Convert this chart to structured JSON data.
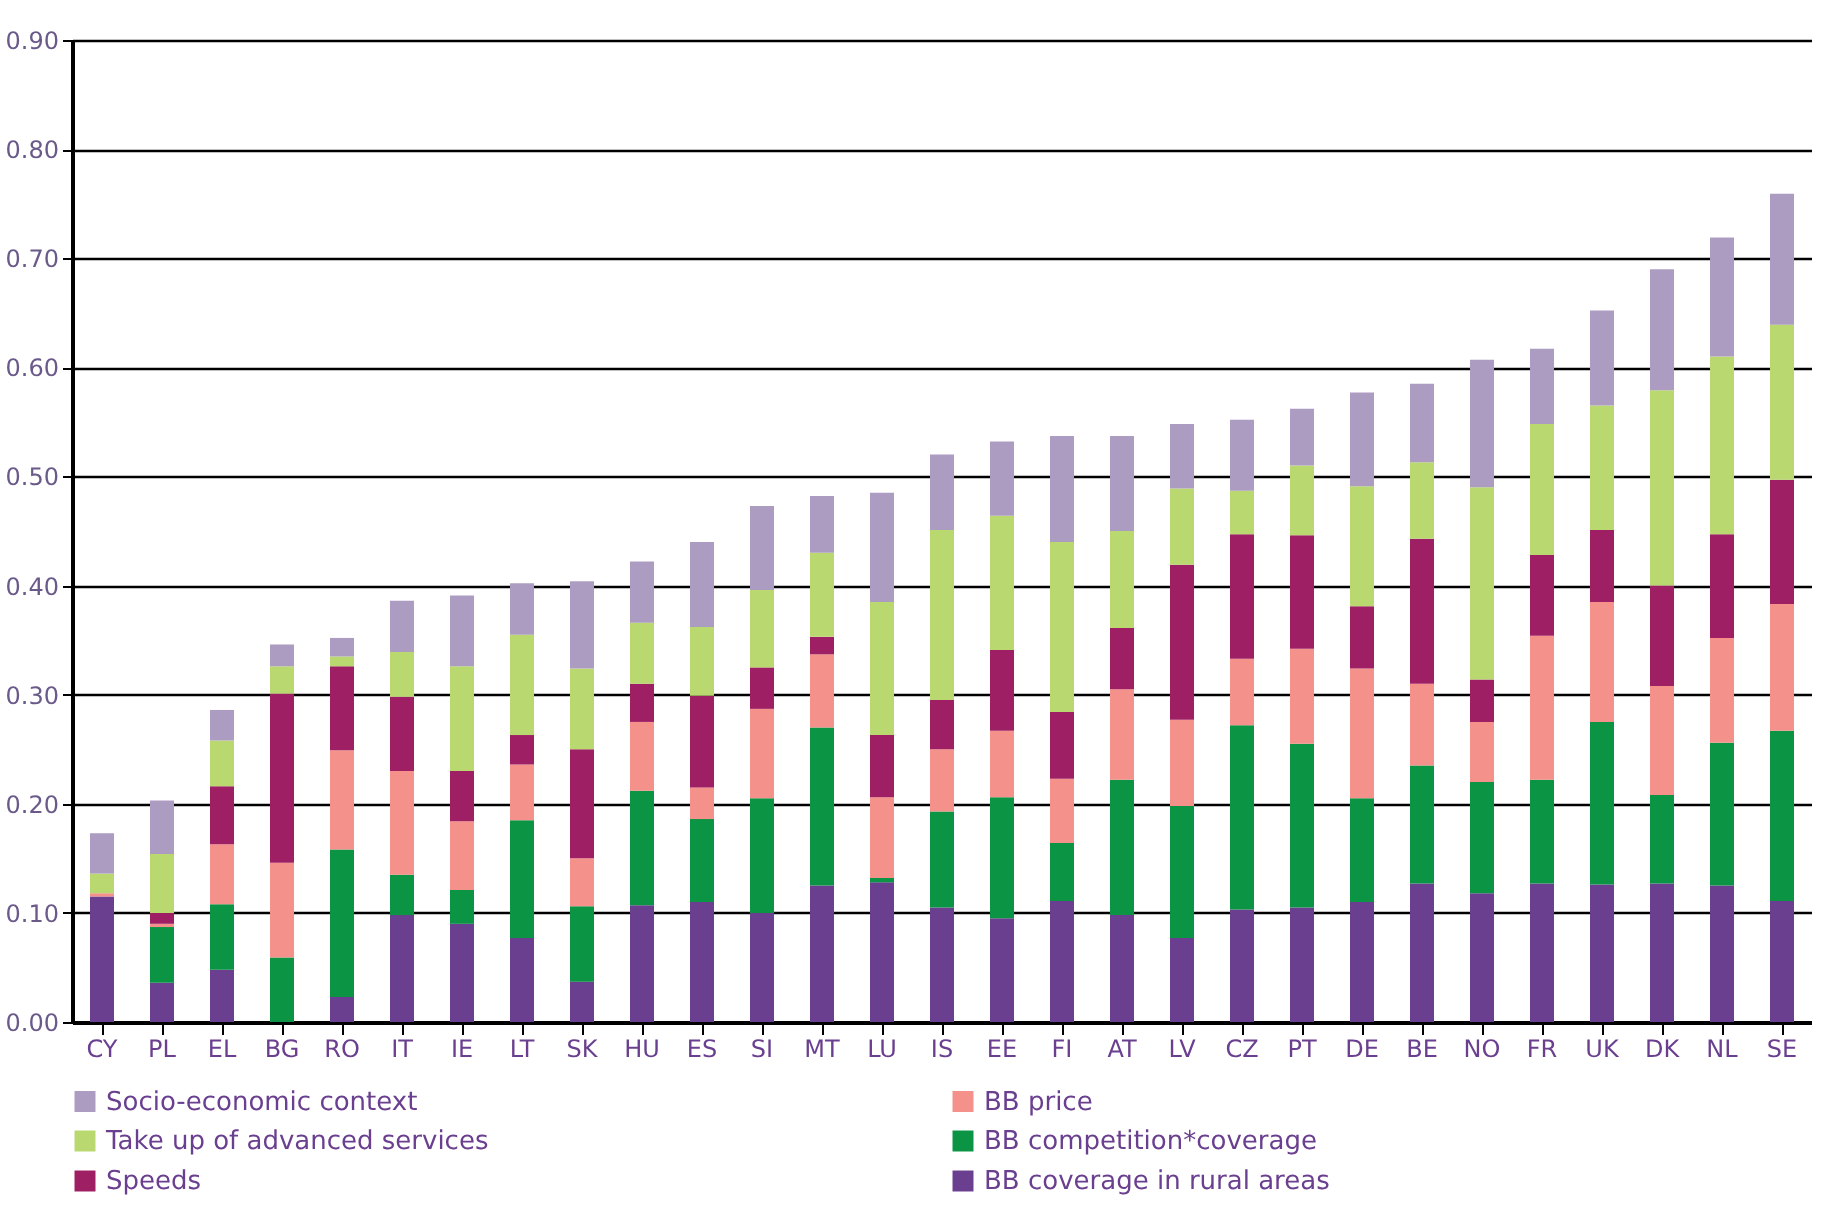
{
  "chart_data": {
    "type": "bar",
    "stacked": true,
    "categories": [
      "CY",
      "PL",
      "EL",
      "BG",
      "RO",
      "IT",
      "IE",
      "LT",
      "SK",
      "HU",
      "ES",
      "SI",
      "MT",
      "LU",
      "IS",
      "EE",
      "FI",
      "AT",
      "LV",
      "CZ",
      "PT",
      "DE",
      "BE",
      "NO",
      "FR",
      "UK",
      "DK",
      "NL",
      "SE"
    ],
    "series": [
      {
        "name": "BB coverage in rural areas",
        "color": "#6a3f8f",
        "values": [
          0.115,
          0.036,
          0.048,
          0,
          0.023,
          0.098,
          0.09,
          0.077,
          0.037,
          0.107,
          0.11,
          0.1,
          0.125,
          0.128,
          0.105,
          0.095,
          0.111,
          0.098,
          0.077,
          0.103,
          0.105,
          0.11,
          0.127,
          0.118,
          0.127,
          0.126,
          0.127,
          0.125,
          0.111
        ]
      },
      {
        "name": "BB competition*coverage",
        "color": "#0a9444",
        "values": [
          0,
          0.051,
          0.06,
          0.059,
          0.135,
          0.037,
          0.031,
          0.108,
          0.069,
          0.105,
          0.076,
          0.105,
          0.145,
          0.004,
          0.088,
          0.111,
          0.053,
          0.124,
          0.121,
          0.169,
          0.15,
          0.095,
          0.108,
          0.102,
          0.095,
          0.149,
          0.081,
          0.131,
          0.156
        ]
      },
      {
        "name": "BB price",
        "color": "#f4918a",
        "values": [
          0.003,
          0.003,
          0.055,
          0.087,
          0.091,
          0.095,
          0.063,
          0.051,
          0.044,
          0.063,
          0.029,
          0.082,
          0.067,
          0.074,
          0.057,
          0.061,
          0.059,
          0.083,
          0.079,
          0.061,
          0.087,
          0.119,
          0.075,
          0.055,
          0.132,
          0.11,
          0.1,
          0.096,
          0.116
        ]
      },
      {
        "name": "Speeds",
        "color": "#9e1f63",
        "values": [
          0,
          0.01,
          0.053,
          0.155,
          0.077,
          0.068,
          0.046,
          0.027,
          0.1,
          0.035,
          0.084,
          0.038,
          0.016,
          0.057,
          0.045,
          0.074,
          0.061,
          0.056,
          0.142,
          0.114,
          0.104,
          0.057,
          0.133,
          0.039,
          0.074,
          0.066,
          0.092,
          0.095,
          0.114
        ]
      },
      {
        "name": "Take up of advanced services",
        "color": "#b9d870",
        "values": [
          0.018,
          0.054,
          0.042,
          0.025,
          0.009,
          0.041,
          0.096,
          0.092,
          0.074,
          0.056,
          0.063,
          0.071,
          0.077,
          0.122,
          0.156,
          0.123,
          0.156,
          0.089,
          0.07,
          0.04,
          0.064,
          0.11,
          0.07,
          0.176,
          0.12,
          0.114,
          0.179,
          0.163,
          0.142
        ]
      },
      {
        "name": "Socio-economic context",
        "color": "#ad9cc1",
        "values": [
          0.037,
          0.049,
          0.028,
          0.02,
          0.017,
          0.047,
          0.065,
          0.047,
          0.08,
          0.056,
          0.078,
          0.077,
          0.052,
          0.1,
          0.069,
          0.068,
          0.097,
          0.087,
          0.059,
          0.065,
          0.052,
          0.086,
          0.072,
          0.117,
          0.069,
          0.087,
          0.111,
          0.109,
          0.12
        ]
      }
    ],
    "ylim": [
      0,
      0.9
    ],
    "yticks": [
      {
        "value": 0,
        "label": "0.00"
      },
      {
        "value": 0.1,
        "label": "0.10"
      },
      {
        "value": 0.2,
        "label": "0.20"
      },
      {
        "value": 0.3,
        "label": "0.30"
      },
      {
        "value": 0.4,
        "label": "0.40"
      },
      {
        "value": 0.5,
        "label": "0.50"
      },
      {
        "value": 0.6,
        "label": "0.60"
      },
      {
        "value": 0.7,
        "label": "0.70"
      },
      {
        "value": 0.8,
        "label": "0.80"
      },
      {
        "value": 0.9,
        "label": "0.90"
      }
    ],
    "grid": "y",
    "legend": "bottom"
  }
}
